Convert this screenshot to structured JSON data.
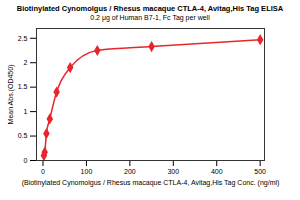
{
  "chart_data": {
    "type": "line",
    "title": "Biotinylated Cynomolgus / Rhesus macaque CTLA-4, Avitag,His Tag ELISA",
    "subtitle": "0.2 μg of Human B7-1, Fc Tag per well",
    "x_label": "(Biotinylated Cynomolgus / Rhesus macaque CTLA-4, Avitag,His Tag Conc. (ng/ml)",
    "y_label": "Mean Abs.(OD450)",
    "x": [
      1.95,
      3.9,
      7.8,
      15.6,
      31.3,
      62.5,
      125,
      250,
      500
    ],
    "values": [
      0.1,
      0.17,
      0.55,
      0.85,
      1.4,
      1.9,
      2.25,
      2.33,
      2.47
    ],
    "color": "#e8262b",
    "marker": "diamond",
    "xlim": [
      -15,
      510
    ],
    "xticks": [
      0,
      100,
      200,
      300,
      400,
      500
    ],
    "ylim": [
      0,
      2.7
    ],
    "yticks": [
      0,
      0.5,
      1,
      1.5,
      2,
      2.5
    ],
    "grid": false
  }
}
